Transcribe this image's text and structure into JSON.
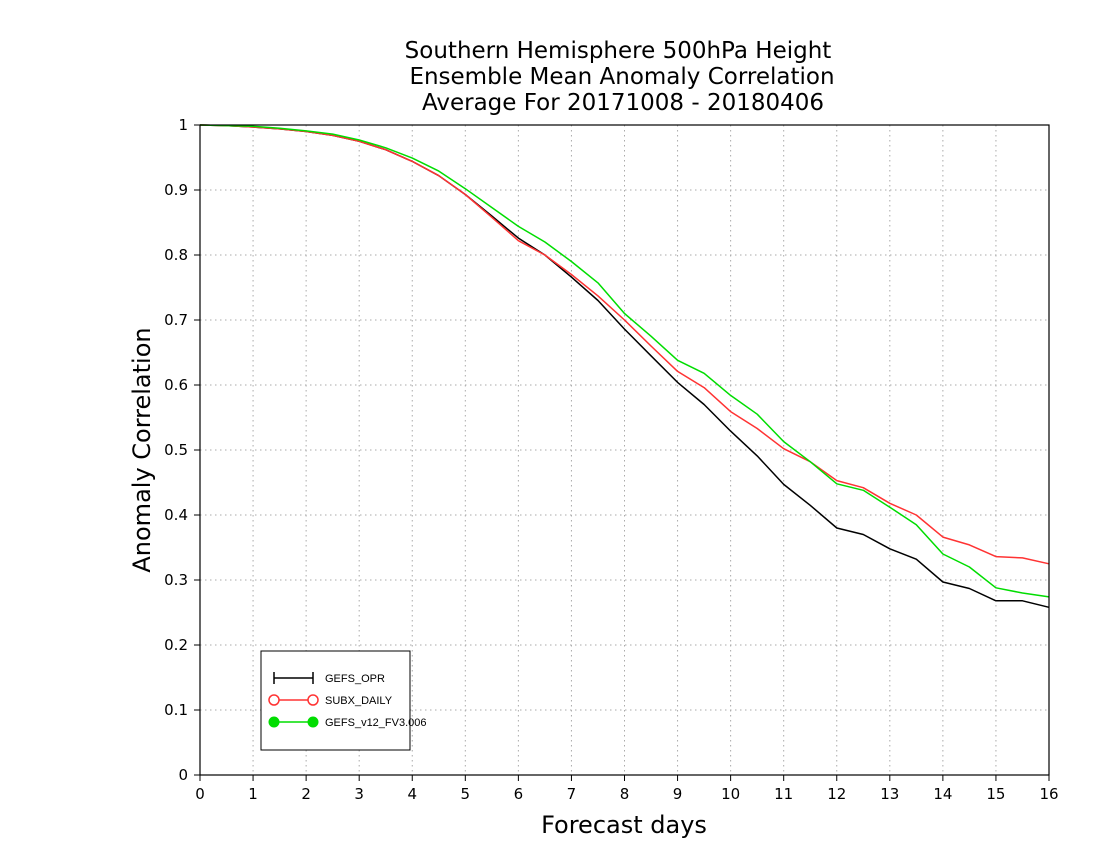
{
  "chart_data": {
    "type": "line",
    "title": [
      "Southern Hemisphere 500hPa Height",
      "Ensemble Mean Anomaly Correlation",
      "Average For 20171008 - 20180406"
    ],
    "xlabel": "Forecast days",
    "ylabel": "Anomaly Correlation",
    "xlim": [
      0,
      16
    ],
    "ylim": [
      0,
      1
    ],
    "xticks": [
      0,
      1,
      2,
      3,
      4,
      5,
      6,
      7,
      8,
      9,
      10,
      11,
      12,
      13,
      14,
      15,
      16
    ],
    "yticks": [
      0,
      0.1,
      0.2,
      0.3,
      0.4,
      0.5,
      0.6,
      0.7,
      0.8,
      0.9,
      1
    ],
    "ytick_labels": [
      "0",
      "0.1",
      "0.2",
      "0.3",
      "0.4",
      "0.5",
      "0.6",
      "0.7",
      "0.8",
      "0.9",
      "1"
    ],
    "grid": true,
    "legend_position": "bottom-left",
    "x": [
      0,
      0.5,
      1,
      1.5,
      2,
      2.5,
      3,
      3.5,
      4,
      4.5,
      5,
      5.5,
      6,
      6.5,
      7,
      7.5,
      8,
      8.5,
      9,
      9.5,
      10,
      10.5,
      11,
      11.5,
      12,
      12.5,
      13,
      13.5,
      14,
      14.5,
      15,
      15.5,
      16
    ],
    "series": [
      {
        "name": "GEFS_OPR",
        "color": "#000000",
        "marker": "plus",
        "values": [
          1.0,
          0.999,
          0.997,
          0.994,
          0.99,
          0.984,
          0.975,
          0.962,
          0.944,
          0.922,
          0.893,
          0.86,
          0.826,
          0.8,
          0.766,
          0.73,
          0.686,
          0.645,
          0.604,
          0.57,
          0.529,
          0.491,
          0.447,
          0.415,
          0.38,
          0.37,
          0.348,
          0.332,
          0.297,
          0.287,
          0.268,
          0.268,
          0.258
        ]
      },
      {
        "name": "SUBX_DAILY",
        "color": "#ff3333",
        "marker": "open-circle",
        "values": [
          1.0,
          0.999,
          0.997,
          0.994,
          0.99,
          0.984,
          0.975,
          0.962,
          0.944,
          0.922,
          0.893,
          0.858,
          0.822,
          0.8,
          0.77,
          0.737,
          0.7,
          0.66,
          0.621,
          0.596,
          0.559,
          0.533,
          0.502,
          0.482,
          0.453,
          0.442,
          0.418,
          0.4,
          0.366,
          0.354,
          0.336,
          0.334,
          0.325
        ]
      },
      {
        "name": "GEFS_v12_FV3.006",
        "color": "#00dd00",
        "marker": "filled-circle",
        "values": [
          1.0,
          0.999,
          0.998,
          0.995,
          0.991,
          0.986,
          0.977,
          0.965,
          0.949,
          0.929,
          0.902,
          0.873,
          0.844,
          0.82,
          0.79,
          0.757,
          0.71,
          0.675,
          0.638,
          0.618,
          0.584,
          0.555,
          0.513,
          0.482,
          0.448,
          0.438,
          0.412,
          0.385,
          0.34,
          0.32,
          0.288,
          0.28,
          0.274
        ]
      }
    ]
  }
}
